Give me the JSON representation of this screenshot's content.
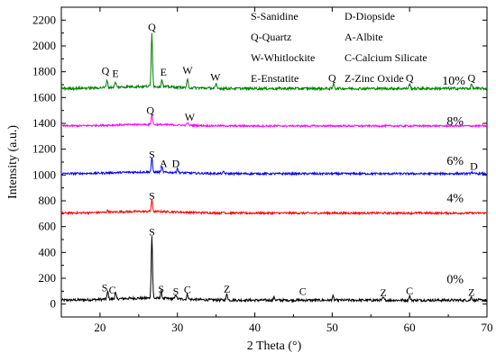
{
  "chart_data": {
    "type": "line",
    "xlabel": "2 Theta (°)",
    "ylabel": "Intensity (a.u.)",
    "xlim": [
      15,
      70
    ],
    "ylim": [
      -100,
      2300
    ],
    "xticks": [
      20,
      30,
      40,
      50,
      60,
      70
    ],
    "yticks": [
      0,
      200,
      400,
      600,
      800,
      1000,
      1200,
      1400,
      1600,
      1800,
      2000,
      2200
    ],
    "legend_text": [
      "S-Sanidine",
      "Q-Quartz",
      "W-Whitlockite",
      "E-Enstatite",
      "D-Diopside",
      "A-Albite",
      "C-Calcium Silicate",
      "Z-Zinc Oxide"
    ],
    "series": [
      {
        "label": "0%",
        "label_x": 64.8,
        "label_y": 160,
        "color": "#000000",
        "baseline": 30,
        "noise": 10,
        "peaks": [
          [
            21.0,
            60
          ],
          [
            22.0,
            45
          ],
          [
            26.7,
            480
          ],
          [
            27.9,
            55
          ],
          [
            29.8,
            35
          ],
          [
            31.3,
            40
          ],
          [
            36.4,
            50
          ],
          [
            42.5,
            25
          ],
          [
            50.1,
            30
          ],
          [
            56.6,
            20
          ],
          [
            60.0,
            35
          ],
          [
            68.0,
            25
          ]
        ],
        "annotations": [
          {
            "text": "S",
            "x": 20.6,
            "y": 100
          },
          {
            "text": "C",
            "x": 21.6,
            "y": 80
          },
          {
            "text": "S",
            "x": 26.7,
            "y": 530
          },
          {
            "text": "S",
            "x": 27.9,
            "y": 90
          },
          {
            "text": "S",
            "x": 29.8,
            "y": 70
          },
          {
            "text": "C",
            "x": 31.3,
            "y": 85
          },
          {
            "text": "Z",
            "x": 36.4,
            "y": 90
          },
          {
            "text": "C",
            "x": 46.2,
            "y": 70
          },
          {
            "text": "Z",
            "x": 56.6,
            "y": 60
          },
          {
            "text": "C",
            "x": 60.0,
            "y": 75
          },
          {
            "text": "Z",
            "x": 68.0,
            "y": 65
          }
        ]
      },
      {
        "label": "4%",
        "label_x": 64.8,
        "label_y": 790,
        "color": "#ff0000",
        "baseline": 705,
        "noise": 8,
        "peaks": [
          [
            26.7,
            90
          ],
          [
            21.0,
            15
          ],
          [
            36.0,
            10
          ]
        ],
        "annotations": [
          {
            "text": "S",
            "x": 26.7,
            "y": 810
          }
        ]
      },
      {
        "label": "6%",
        "label_x": 64.8,
        "label_y": 1080,
        "color": "#0000ff",
        "baseline": 1010,
        "noise": 8,
        "peaks": [
          [
            26.7,
            110
          ],
          [
            28.0,
            40
          ],
          [
            30.0,
            35
          ],
          [
            36.0,
            15
          ],
          [
            68.0,
            15
          ]
        ],
        "annotations": [
          {
            "text": "S",
            "x": 26.7,
            "y": 1130
          },
          {
            "text": "A",
            "x": 28.2,
            "y": 1060
          },
          {
            "text": "D",
            "x": 29.8,
            "y": 1060
          },
          {
            "text": "D",
            "x": 68.3,
            "y": 1040
          }
        ]
      },
      {
        "label": "8%",
        "label_x": 64.8,
        "label_y": 1385,
        "color": "#ff00ff",
        "baseline": 1380,
        "noise": 7,
        "peaks": [
          [
            26.7,
            80
          ],
          [
            31.3,
            20
          ]
        ],
        "annotations": [
          {
            "text": "Q",
            "x": 26.5,
            "y": 1475
          },
          {
            "text": "W",
            "x": 31.6,
            "y": 1420
          }
        ]
      },
      {
        "label": "10%",
        "label_x": 64.2,
        "label_y": 1700,
        "color": "#008000",
        "baseline": 1670,
        "noise": 10,
        "peaks": [
          [
            20.9,
            60
          ],
          [
            22.0,
            40
          ],
          [
            26.7,
            420
          ],
          [
            28.0,
            55
          ],
          [
            31.3,
            60
          ],
          [
            35.0,
            30
          ],
          [
            50.2,
            40
          ],
          [
            60.0,
            35
          ],
          [
            68.0,
            35
          ]
        ],
        "annotations": [
          {
            "text": "Q",
            "x": 20.7,
            "y": 1780
          },
          {
            "text": "E",
            "x": 22.0,
            "y": 1760
          },
          {
            "text": "Q",
            "x": 26.7,
            "y": 2120
          },
          {
            "text": "E",
            "x": 28.2,
            "y": 1770
          },
          {
            "text": "W",
            "x": 31.3,
            "y": 1785
          },
          {
            "text": "W",
            "x": 34.9,
            "y": 1730
          },
          {
            "text": "Q",
            "x": 50.0,
            "y": 1725
          },
          {
            "text": "Q",
            "x": 60.0,
            "y": 1725
          },
          {
            "text": "Q",
            "x": 68.0,
            "y": 1725
          }
        ]
      }
    ]
  }
}
